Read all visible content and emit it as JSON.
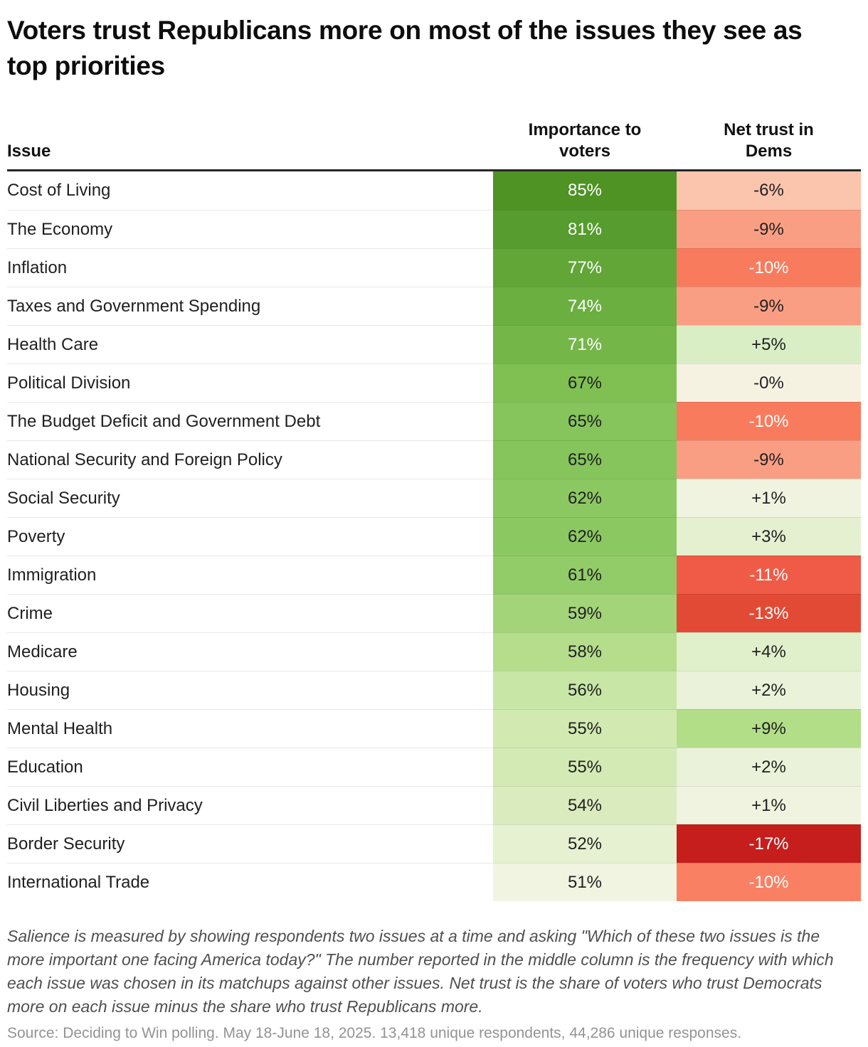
{
  "title": "Voters trust Republicans more on most of the issues they see as top priorities",
  "columns": {
    "issue": "Issue",
    "importance": "Importance to\nvoters",
    "net_trust": "Net trust in\nDems"
  },
  "colors": {
    "header_rule": "#262626",
    "dark_text": "#1f1f1f",
    "light_text": "#ffffff"
  },
  "table": {
    "rows": [
      {
        "issue": "Cost of Living",
        "importance": "85%",
        "net": "-6%",
        "imp_bg": "#4e9323",
        "imp_fg": "#ffffff",
        "net_bg": "#fbc4ad",
        "net_fg": "#1f1f1f"
      },
      {
        "issue": "The Economy",
        "importance": "81%",
        "net": "-9%",
        "imp_bg": "#569c2e",
        "imp_fg": "#ffffff",
        "net_bg": "#fa9e83",
        "net_fg": "#1f1f1f"
      },
      {
        "issue": "Inflation",
        "importance": "77%",
        "net": "-10%",
        "imp_bg": "#61a637",
        "imp_fg": "#ffffff",
        "net_bg": "#f97b5d",
        "net_fg": "#ffffff"
      },
      {
        "issue": "Taxes and Government Spending",
        "importance": "74%",
        "net": "-9%",
        "imp_bg": "#6baf40",
        "imp_fg": "#ffffff",
        "net_bg": "#fa9e83",
        "net_fg": "#1f1f1f"
      },
      {
        "issue": "Health Care",
        "importance": "71%",
        "net": "+5%",
        "imp_bg": "#74b648",
        "imp_fg": "#ffffff",
        "net_bg": "#d9eec5",
        "net_fg": "#1f1f1f"
      },
      {
        "issue": "Political Division",
        "importance": "67%",
        "net": "-0%",
        "imp_bg": "#80c053",
        "imp_fg": "#1f1f1f",
        "net_bg": "#f6f2e2",
        "net_fg": "#1f1f1f"
      },
      {
        "issue": "The Budget Deficit and Government Debt",
        "importance": "65%",
        "net": "-10%",
        "imp_bg": "#86c45c",
        "imp_fg": "#1f1f1f",
        "net_bg": "#f97b5d",
        "net_fg": "#ffffff"
      },
      {
        "issue": "National Security and Foreign Policy",
        "importance": "65%",
        "net": "-9%",
        "imp_bg": "#86c45c",
        "imp_fg": "#1f1f1f",
        "net_bg": "#fa9e83",
        "net_fg": "#1f1f1f"
      },
      {
        "issue": "Social Security",
        "importance": "62%",
        "net": "+1%",
        "imp_bg": "#8cc862",
        "imp_fg": "#1f1f1f",
        "net_bg": "#f0f3e0",
        "net_fg": "#1f1f1f"
      },
      {
        "issue": "Poverty",
        "importance": "62%",
        "net": "+3%",
        "imp_bg": "#8cc862",
        "imp_fg": "#1f1f1f",
        "net_bg": "#e4f0d0",
        "net_fg": "#1f1f1f"
      },
      {
        "issue": "Immigration",
        "importance": "61%",
        "net": "-11%",
        "imp_bg": "#92cc68",
        "imp_fg": "#1f1f1f",
        "net_bg": "#ef5b47",
        "net_fg": "#ffffff"
      },
      {
        "issue": "Crime",
        "importance": "59%",
        "net": "-13%",
        "imp_bg": "#a3d479",
        "imp_fg": "#1f1f1f",
        "net_bg": "#e24a35",
        "net_fg": "#ffffff"
      },
      {
        "issue": "Medicare",
        "importance": "58%",
        "net": "+4%",
        "imp_bg": "#b5dd8c",
        "imp_fg": "#1f1f1f",
        "net_bg": "#dff0cb",
        "net_fg": "#1f1f1f"
      },
      {
        "issue": "Housing",
        "importance": "56%",
        "net": "+2%",
        "imp_bg": "#c8e6a6",
        "imp_fg": "#1f1f1f",
        "net_bg": "#eaf2d9",
        "net_fg": "#1f1f1f"
      },
      {
        "issue": "Mental Health",
        "importance": "55%",
        "net": "+9%",
        "imp_bg": "#d2e9b2",
        "imp_fg": "#1f1f1f",
        "net_bg": "#b2de88",
        "net_fg": "#1f1f1f"
      },
      {
        "issue": "Education",
        "importance": "55%",
        "net": "+2%",
        "imp_bg": "#d3eab4",
        "imp_fg": "#1f1f1f",
        "net_bg": "#eaf2d9",
        "net_fg": "#1f1f1f"
      },
      {
        "issue": "Civil Liberties and Privacy",
        "importance": "54%",
        "net": "+1%",
        "imp_bg": "#daecbd",
        "imp_fg": "#1f1f1f",
        "net_bg": "#f0f3e0",
        "net_fg": "#1f1f1f"
      },
      {
        "issue": "Border Security",
        "importance": "52%",
        "net": "-17%",
        "imp_bg": "#e6f1d1",
        "imp_fg": "#1f1f1f",
        "net_bg": "#c51e1c",
        "net_fg": "#ffffff"
      },
      {
        "issue": "International Trade",
        "importance": "51%",
        "net": "-10%",
        "imp_bg": "#f1f4e1",
        "imp_fg": "#1f1f1f",
        "net_bg": "#fa8063",
        "net_fg": "#ffffff"
      }
    ]
  },
  "chart_data": {
    "type": "table",
    "title": "Voters trust Republicans more on most of the issues they see as top priorities",
    "columns": [
      "Issue",
      "Importance to voters",
      "Net trust in Dems"
    ],
    "categories": [
      "Cost of Living",
      "The Economy",
      "Inflation",
      "Taxes and Government Spending",
      "Health Care",
      "Political Division",
      "The Budget Deficit and Government Debt",
      "National Security and Foreign Policy",
      "Social Security",
      "Poverty",
      "Immigration",
      "Crime",
      "Medicare",
      "Housing",
      "Mental Health",
      "Education",
      "Civil Liberties and Privacy",
      "Border Security",
      "International Trade"
    ],
    "series": [
      {
        "name": "Importance to voters (%)",
        "values": [
          85,
          81,
          77,
          74,
          71,
          67,
          65,
          65,
          62,
          62,
          61,
          59,
          58,
          56,
          55,
          55,
          54,
          52,
          51
        ]
      },
      {
        "name": "Net trust in Dems (pct pts)",
        "values": [
          -6,
          -9,
          -10,
          -9,
          5,
          0,
          -10,
          -9,
          1,
          3,
          -11,
          -13,
          4,
          2,
          9,
          2,
          1,
          -17,
          -10
        ]
      }
    ],
    "layout": {
      "cell_shading": "green = high importance / Dem advantage, red = Rep advantage",
      "grid": "horizontal separators"
    }
  },
  "footnote": "Salience is measured by showing respondents two issues at a time and asking \"Which of these two issues is the more important one facing America today?\" The number reported in the middle column is the frequency with which each issue was chosen in its matchups against other issues. Net trust is the share of voters who trust Democrats more on each issue minus the share who trust Republicans more.",
  "source": "Source: Deciding to Win polling. May 18-June 18, 2025. 13,418 unique respondents, 44,286 unique responses."
}
